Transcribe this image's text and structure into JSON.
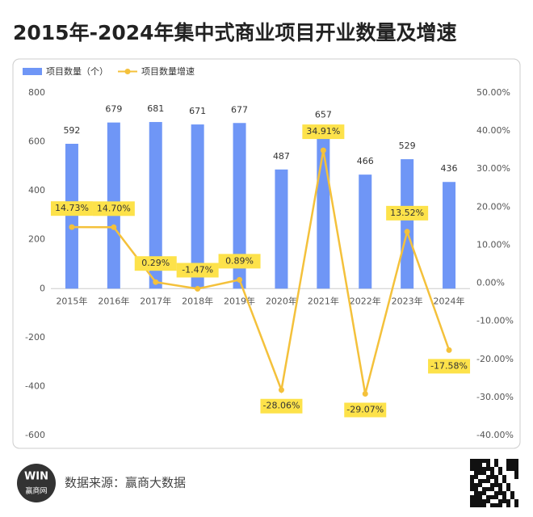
{
  "chart_data": {
    "type": "bar-line",
    "title": "2015年-2024年集中式商业项目开业数量及增速",
    "categories": [
      "2015年",
      "2016年",
      "2017年",
      "2018年",
      "2019年",
      "2020年",
      "2021年",
      "2022年",
      "2023年",
      "2024年"
    ],
    "series": [
      {
        "name": "项目数量（个）",
        "color": "#6f96f6",
        "type": "bar",
        "values": [
          592,
          679,
          681,
          671,
          677,
          487,
          657,
          466,
          529,
          436
        ]
      },
      {
        "name": "项目数量增速",
        "color": "#f4c13b",
        "type": "line",
        "axis": "y2",
        "values": [
          14.73,
          14.7,
          0.29,
          -1.47,
          0.89,
          -28.06,
          34.91,
          -29.07,
          13.52,
          -17.58
        ],
        "value_labels": [
          "14.73%",
          "14.70%",
          "0.29%",
          "-1.47%",
          "0.89%",
          "-28.06%",
          "34.91%",
          "-29.07%",
          "13.52%",
          "-17.58%"
        ]
      }
    ],
    "ylim": [
      -600,
      800
    ],
    "yticks": [
      -600,
      -400,
      -200,
      0,
      200,
      400,
      600,
      800
    ],
    "y2lim": [
      -40,
      50
    ],
    "y2ticks": [
      {
        "value": -40,
        "label": "-40.00%"
      },
      {
        "value": -30,
        "label": "-30.00%"
      },
      {
        "value": -20,
        "label": "-20.00%"
      },
      {
        "value": -10,
        "label": "-10.00%"
      },
      {
        "value": 0,
        "label": "0.00%"
      },
      {
        "value": 10,
        "label": "10.00%"
      },
      {
        "value": 20,
        "label": "20.00%"
      },
      {
        "value": 30,
        "label": "30.00%"
      },
      {
        "value": 40,
        "label": "40.00%"
      },
      {
        "value": 50,
        "label": "50.00%"
      }
    ],
    "legend": "top-left",
    "source": "数据来源：赢商大数据",
    "logo_text": "赢商网"
  }
}
